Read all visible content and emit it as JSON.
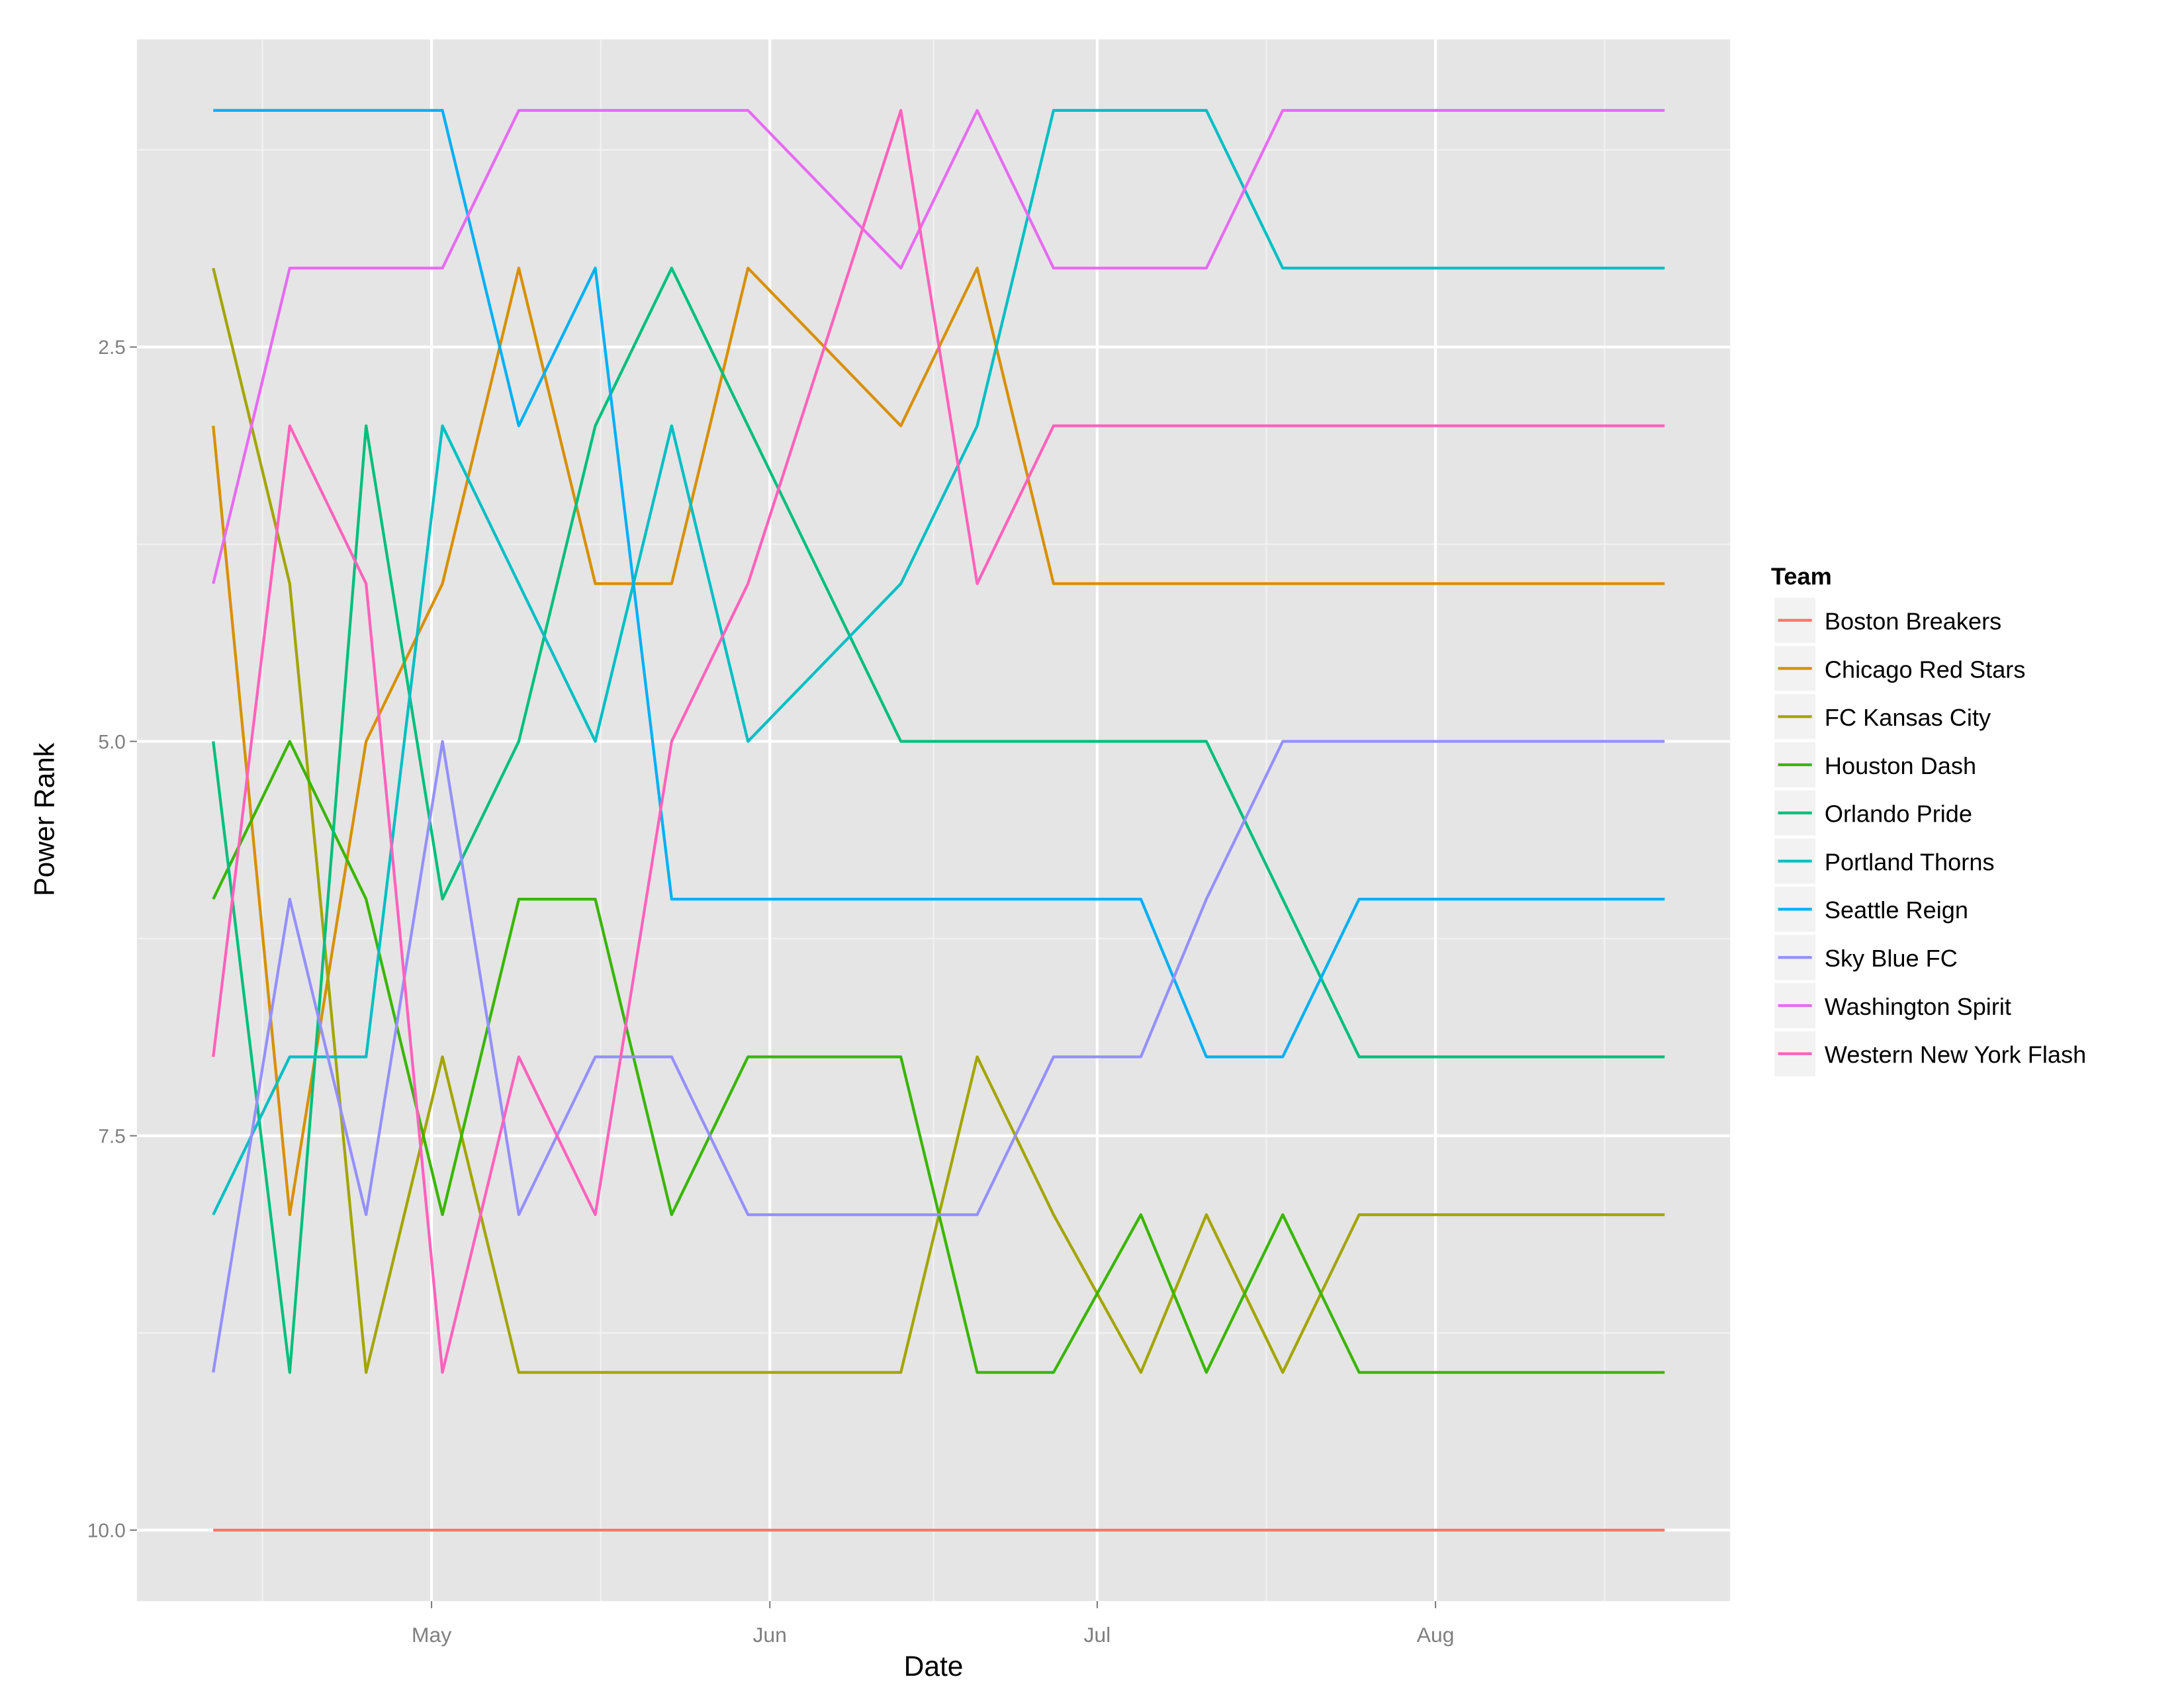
{
  "chart_data": {
    "type": "line",
    "xlabel": "Date",
    "ylabel": "Power Rank",
    "x_ticks": [
      {
        "label": "May",
        "date": "2016-05-01"
      },
      {
        "label": "Jun",
        "date": "2016-06-01"
      },
      {
        "label": "Jul",
        "date": "2016-07-01"
      },
      {
        "label": "Aug",
        "date": "2016-08-01"
      }
    ],
    "y_ticks": [
      "2.5",
      "5.0",
      "7.5",
      "10.0"
    ],
    "y_tick_values": [
      2.5,
      5.0,
      7.5,
      10.0
    ],
    "ylim": [
      0.55,
      10.45
    ],
    "y_reversed": true,
    "xlim": [
      "2016-04-04",
      "2016-08-28"
    ],
    "grid": true,
    "background": "#E5E5E5",
    "legend": {
      "title": "Team",
      "position": "right"
    },
    "x": [
      "2016-04-11",
      "2016-04-18",
      "2016-04-25",
      "2016-05-02",
      "2016-05-09",
      "2016-05-16",
      "2016-05-23",
      "2016-05-30",
      "2016-06-13",
      "2016-06-20",
      "2016-06-27",
      "2016-07-05",
      "2016-07-11",
      "2016-07-18",
      "2016-07-25",
      "2016-08-22"
    ],
    "series": [
      {
        "name": "Boston Breakers",
        "color": "#F8766D",
        "values": [
          10,
          10,
          10,
          10,
          10,
          10,
          10,
          10,
          10,
          10,
          10,
          10,
          10,
          10,
          10,
          10
        ]
      },
      {
        "name": "Chicago Red Stars",
        "color": "#D89000",
        "values": [
          3,
          8,
          5,
          4,
          2,
          4,
          4,
          2,
          3,
          2,
          4,
          4,
          4,
          4,
          4,
          4
        ]
      },
      {
        "name": "FC Kansas City",
        "color": "#A3A500",
        "values": [
          2,
          4,
          9,
          7,
          9,
          9,
          9,
          9,
          9,
          7,
          8,
          9,
          8,
          9,
          8,
          8
        ]
      },
      {
        "name": "Houston Dash",
        "color": "#39B600",
        "values": [
          6,
          5,
          6,
          8,
          6,
          6,
          8,
          7,
          7,
          9,
          9,
          8,
          9,
          8,
          9,
          9
        ]
      },
      {
        "name": "Orlando Pride",
        "color": "#00BF7D",
        "values": [
          5,
          9,
          3,
          6,
          5,
          3,
          2,
          3,
          5,
          5,
          5,
          5,
          5,
          6,
          7,
          7
        ]
      },
      {
        "name": "Portland Thorns",
        "color": "#00BFC4",
        "values": [
          8,
          7,
          7,
          3,
          4,
          5,
          3,
          5,
          4,
          3,
          1,
          1,
          1,
          2,
          2,
          2
        ]
      },
      {
        "name": "Seattle Reign",
        "color": "#00B0F6",
        "values": [
          1,
          1,
          1,
          1,
          3,
          2,
          6,
          6,
          6,
          6,
          6,
          6,
          7,
          7,
          6,
          6
        ]
      },
      {
        "name": "Sky Blue FC",
        "color": "#9590FF",
        "values": [
          9,
          6,
          8,
          5,
          8,
          7,
          7,
          8,
          8,
          8,
          7,
          7,
          6,
          5,
          5,
          5
        ]
      },
      {
        "name": "Washington Spirit",
        "color": "#E76BF3",
        "values": [
          4,
          2,
          2,
          2,
          1,
          1,
          1,
          1,
          2,
          1,
          2,
          2,
          2,
          1,
          1,
          1
        ]
      },
      {
        "name": "Western New York Flash",
        "color": "#FF62BC",
        "values": [
          7,
          3,
          4,
          9,
          7,
          8,
          5,
          4,
          1,
          4,
          3,
          3,
          3,
          3,
          3,
          3
        ]
      }
    ]
  }
}
